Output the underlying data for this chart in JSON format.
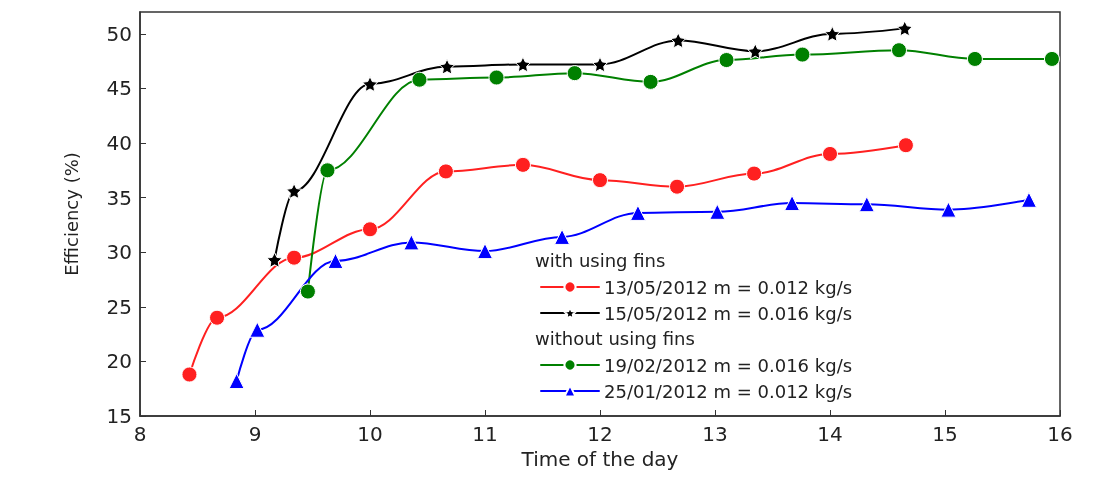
{
  "chart_data": {
    "type": "line",
    "xlabel": "Time of the day",
    "ylabel": "Efficiency (%)",
    "xlim": [
      8,
      16
    ],
    "xticks": [
      8,
      9,
      10,
      11,
      12,
      13,
      14,
      15,
      16
    ],
    "ylim": [
      15,
      52
    ],
    "yticks": [
      15,
      20,
      25,
      30,
      35,
      40,
      45,
      50
    ],
    "grid": false,
    "legend": "bottom right",
    "line_style": "solid",
    "annotations": [
      "with using fins",
      "without using fins"
    ],
    "series": [
      {
        "name": "13/05/2012 m = 0.012 kg/s",
        "color": "#ff2020",
        "marker": "circle",
        "x": [
          8.43,
          8.67,
          9.34,
          10.0,
          10.66,
          11.33,
          12.0,
          12.67,
          13.34,
          14.0,
          14.66
        ],
        "values": [
          18.8,
          24.0,
          29.5,
          32.1,
          37.4,
          38.0,
          36.6,
          36.0,
          37.2,
          39.0,
          39.8
        ]
      },
      {
        "name": "15/05/2012 m = 0.016 kg/s",
        "color": "#000000",
        "marker": "star",
        "x": [
          9.17,
          9.34,
          10.0,
          10.67,
          11.33,
          12.0,
          12.68,
          13.35,
          14.02,
          14.65
        ],
        "values": [
          29.3,
          35.6,
          45.4,
          47.0,
          47.2,
          47.2,
          49.4,
          48.4,
          50.0,
          50.5
        ]
      },
      {
        "name": "19/02/2012 m = 0.016 kg/s",
        "color": "#008000",
        "marker": "circle",
        "x": [
          9.46,
          9.63,
          10.43,
          11.1,
          11.78,
          12.44,
          13.1,
          13.76,
          14.6,
          15.26,
          15.93
        ],
        "values": [
          26.4,
          37.5,
          45.8,
          46.0,
          46.4,
          45.6,
          47.6,
          48.1,
          48.5,
          47.7,
          47.7
        ]
      },
      {
        "name": "25/01/2012 m = 0.012 kg/s",
        "color": "#0000ff",
        "marker": "triangle",
        "x": [
          8.84,
          9.02,
          9.7,
          10.36,
          11.0,
          11.67,
          12.33,
          13.02,
          13.67,
          14.32,
          15.03,
          15.73
        ],
        "values": [
          18.2,
          22.9,
          29.2,
          30.9,
          30.1,
          31.4,
          33.6,
          33.7,
          34.5,
          34.4,
          33.9,
          34.8
        ]
      }
    ]
  }
}
